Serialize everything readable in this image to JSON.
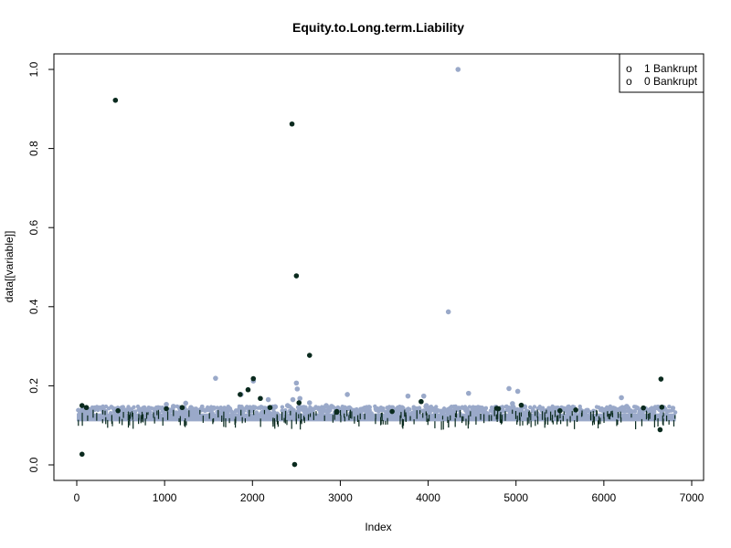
{
  "chart_data": {
    "type": "scatter",
    "title": "Equity.to.Long.term.Liability",
    "xlabel": "Index",
    "ylabel": "data[[variable]]",
    "xlim": [
      0,
      6819
    ],
    "ylim": [
      0,
      1.0
    ],
    "xticks": [
      0,
      1000,
      2000,
      3000,
      4000,
      5000,
      6000,
      7000
    ],
    "yticks": [
      0.0,
      0.2,
      0.4,
      0.6,
      0.8,
      1.0
    ],
    "xtick_labels": [
      "0",
      "1000",
      "2000",
      "3000",
      "4000",
      "5000",
      "6000",
      "7000"
    ],
    "ytick_labels": [
      "0.0",
      "0.2",
      "0.4",
      "0.6",
      "0.8",
      "1.0"
    ],
    "legend": {
      "position": "top-right",
      "entries": [
        {
          "label": "1 Bankrupt",
          "symbol": "o"
        },
        {
          "label": "0 Bankrupt",
          "symbol": "o"
        }
      ]
    },
    "colors": {
      "bankrupt": "#0a2a1e",
      "not_bankrupt": "#9aa9c9"
    },
    "baseline_band": {
      "min": 0.11,
      "max": 0.13,
      "x_range": [
        0,
        6819
      ]
    },
    "series": [
      {
        "name": "0 Bankrupt",
        "color": "#9aa9c9",
        "points": [
          [
            1020,
            0.153
          ],
          [
            1100,
            0.148
          ],
          [
            1240,
            0.156
          ],
          [
            1300,
            0.145
          ],
          [
            1580,
            0.219
          ],
          [
            1870,
            0.178
          ],
          [
            2010,
            0.212
          ],
          [
            2180,
            0.165
          ],
          [
            2260,
            0.147
          ],
          [
            2400,
            0.15
          ],
          [
            2460,
            0.165
          ],
          [
            2500,
            0.207
          ],
          [
            2510,
            0.192
          ],
          [
            2540,
            0.168
          ],
          [
            2650,
            0.157
          ],
          [
            2840,
            0.15
          ],
          [
            2900,
            0.148
          ],
          [
            3080,
            0.178
          ],
          [
            3700,
            0.14
          ],
          [
            3770,
            0.174
          ],
          [
            3950,
            0.174
          ],
          [
            3980,
            0.15
          ],
          [
            4230,
            0.387
          ],
          [
            4340,
            1.0
          ],
          [
            4460,
            0.181
          ],
          [
            4920,
            0.193
          ],
          [
            4960,
            0.155
          ],
          [
            5020,
            0.186
          ],
          [
            5100,
            0.147
          ],
          [
            5560,
            0.141
          ],
          [
            6200,
            0.17
          ],
          [
            6260,
            0.148
          ],
          [
            6680,
            0.145
          ],
          [
            500,
            0.142
          ],
          [
            560,
            0.138
          ],
          [
            800,
            0.139
          ],
          [
            1460,
            0.138
          ],
          [
            1700,
            0.141
          ],
          [
            3300,
            0.136
          ],
          [
            3480,
            0.139
          ],
          [
            4200,
            0.137
          ],
          [
            4600,
            0.139
          ],
          [
            5800,
            0.137
          ],
          [
            6000,
            0.139
          ],
          [
            6520,
            0.138
          ]
        ]
      },
      {
        "name": "1 Bankrupt",
        "color": "#0a2a1e",
        "points": [
          [
            60,
            0.027
          ],
          [
            60,
            0.15
          ],
          [
            110,
            0.145
          ],
          [
            440,
            0.922
          ],
          [
            470,
            0.137
          ],
          [
            1020,
            0.142
          ],
          [
            1200,
            0.145
          ],
          [
            1860,
            0.178
          ],
          [
            1950,
            0.19
          ],
          [
            2010,
            0.218
          ],
          [
            2090,
            0.168
          ],
          [
            2200,
            0.145
          ],
          [
            2450,
            0.862
          ],
          [
            2480,
            0.001
          ],
          [
            2500,
            0.478
          ],
          [
            2530,
            0.157
          ],
          [
            2650,
            0.277
          ],
          [
            2960,
            0.133
          ],
          [
            3920,
            0.16
          ],
          [
            4780,
            0.143
          ],
          [
            5060,
            0.151
          ],
          [
            5500,
            0.137
          ],
          [
            5680,
            0.139
          ],
          [
            6450,
            0.144
          ],
          [
            6640,
            0.089
          ],
          [
            6650,
            0.217
          ],
          [
            6660,
            0.146
          ],
          [
            3590,
            0.135
          ],
          [
            2960,
            0.135
          ],
          [
            4800,
            0.142
          ]
        ]
      }
    ]
  }
}
